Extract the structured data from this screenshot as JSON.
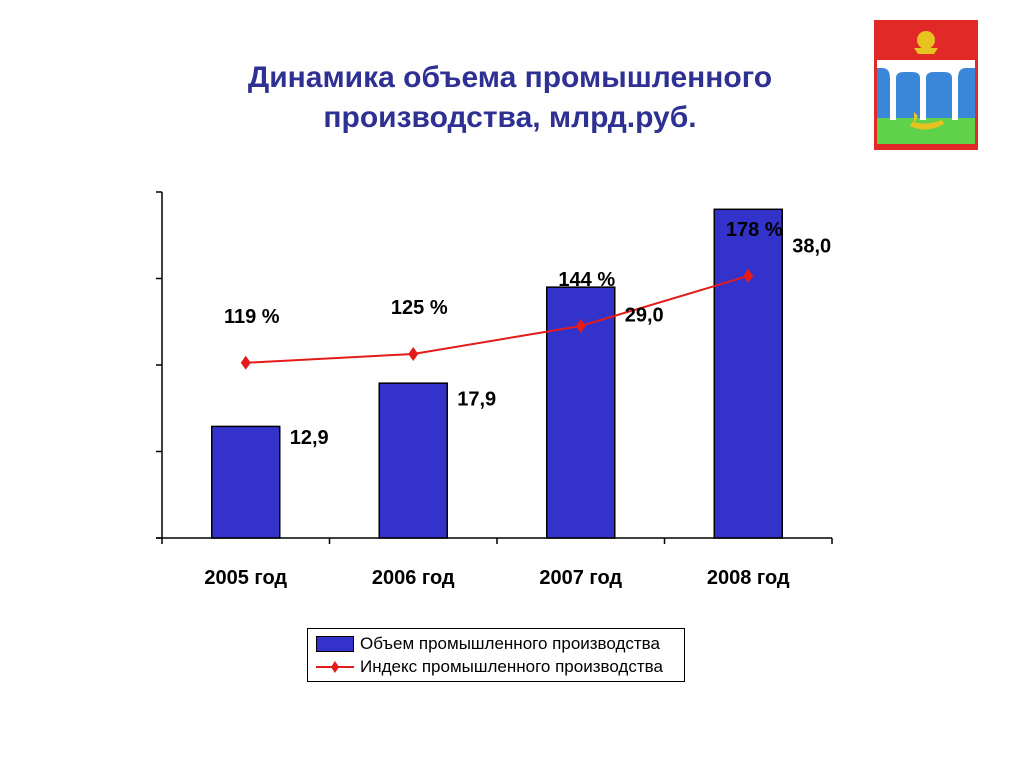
{
  "title_lines": [
    "Динамика объема промышленного",
    "производства, млрд.руб."
  ],
  "legend": {
    "bar_label": "Объем промышленного производства",
    "line_label": "Индекс промышленного производства"
  },
  "colors": {
    "bar": "#3333cc",
    "line": "#e31b1b",
    "title": "#2f3093"
  },
  "emblem": {
    "icon": "coat-of-arms-icon"
  },
  "chart_data": {
    "type": "bar",
    "categories": [
      "2005 год",
      "2006 год",
      "2007 год",
      "2008 год"
    ],
    "series": [
      {
        "name": "Объем промышленного производства",
        "type": "bar",
        "values": [
          12.9,
          17.9,
          29.0,
          38.0
        ],
        "labels": [
          "12,9",
          "17,9",
          "29,0",
          "38,0"
        ]
      },
      {
        "name": "Индекс промышленного производства",
        "type": "line",
        "values": [
          119,
          125,
          144,
          178
        ],
        "labels": [
          "119 %",
          "125 %",
          "144 %",
          "178 %"
        ]
      }
    ],
    "ylim": [
      0,
      40
    ],
    "y2lim": [
      0,
      235
    ],
    "grid": false,
    "legend_position": "bottom"
  }
}
